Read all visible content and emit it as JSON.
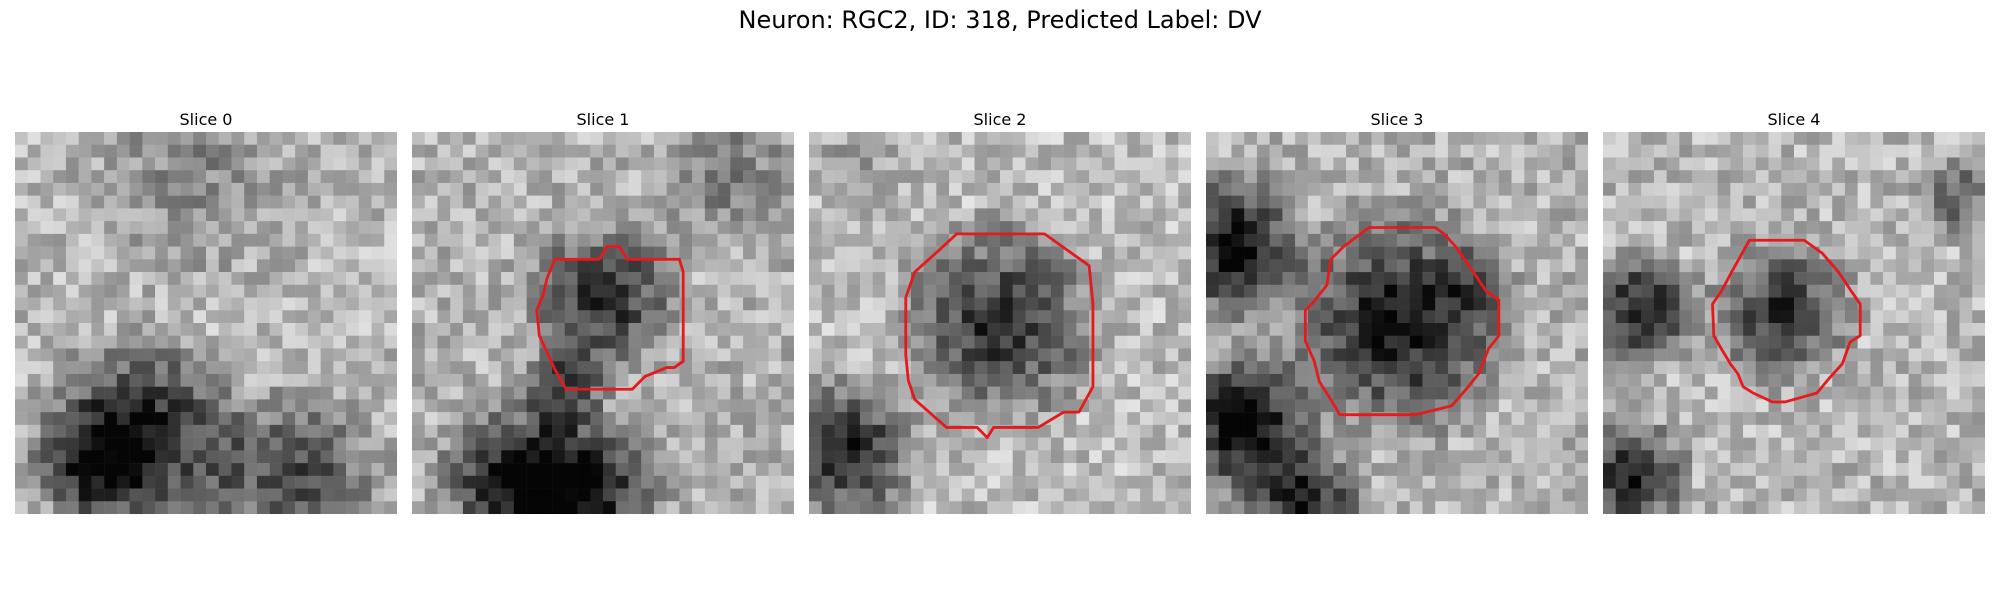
{
  "figure": {
    "title": "Neuron: RGC2, ID: 318, Predicted Label: DV"
  },
  "panels": [
    {
      "title": "Slice 0",
      "has_outline": false,
      "outline_color": "#e41a1c"
    },
    {
      "title": "Slice 1",
      "has_outline": true,
      "outline_color": "#e41a1c"
    },
    {
      "title": "Slice 2",
      "has_outline": true,
      "outline_color": "#e41a1c"
    },
    {
      "title": "Slice 3",
      "has_outline": true,
      "outline_color": "#e41a1c"
    },
    {
      "title": "Slice 4",
      "has_outline": true,
      "outline_color": "#e41a1c"
    }
  ],
  "colormap": "gray"
}
